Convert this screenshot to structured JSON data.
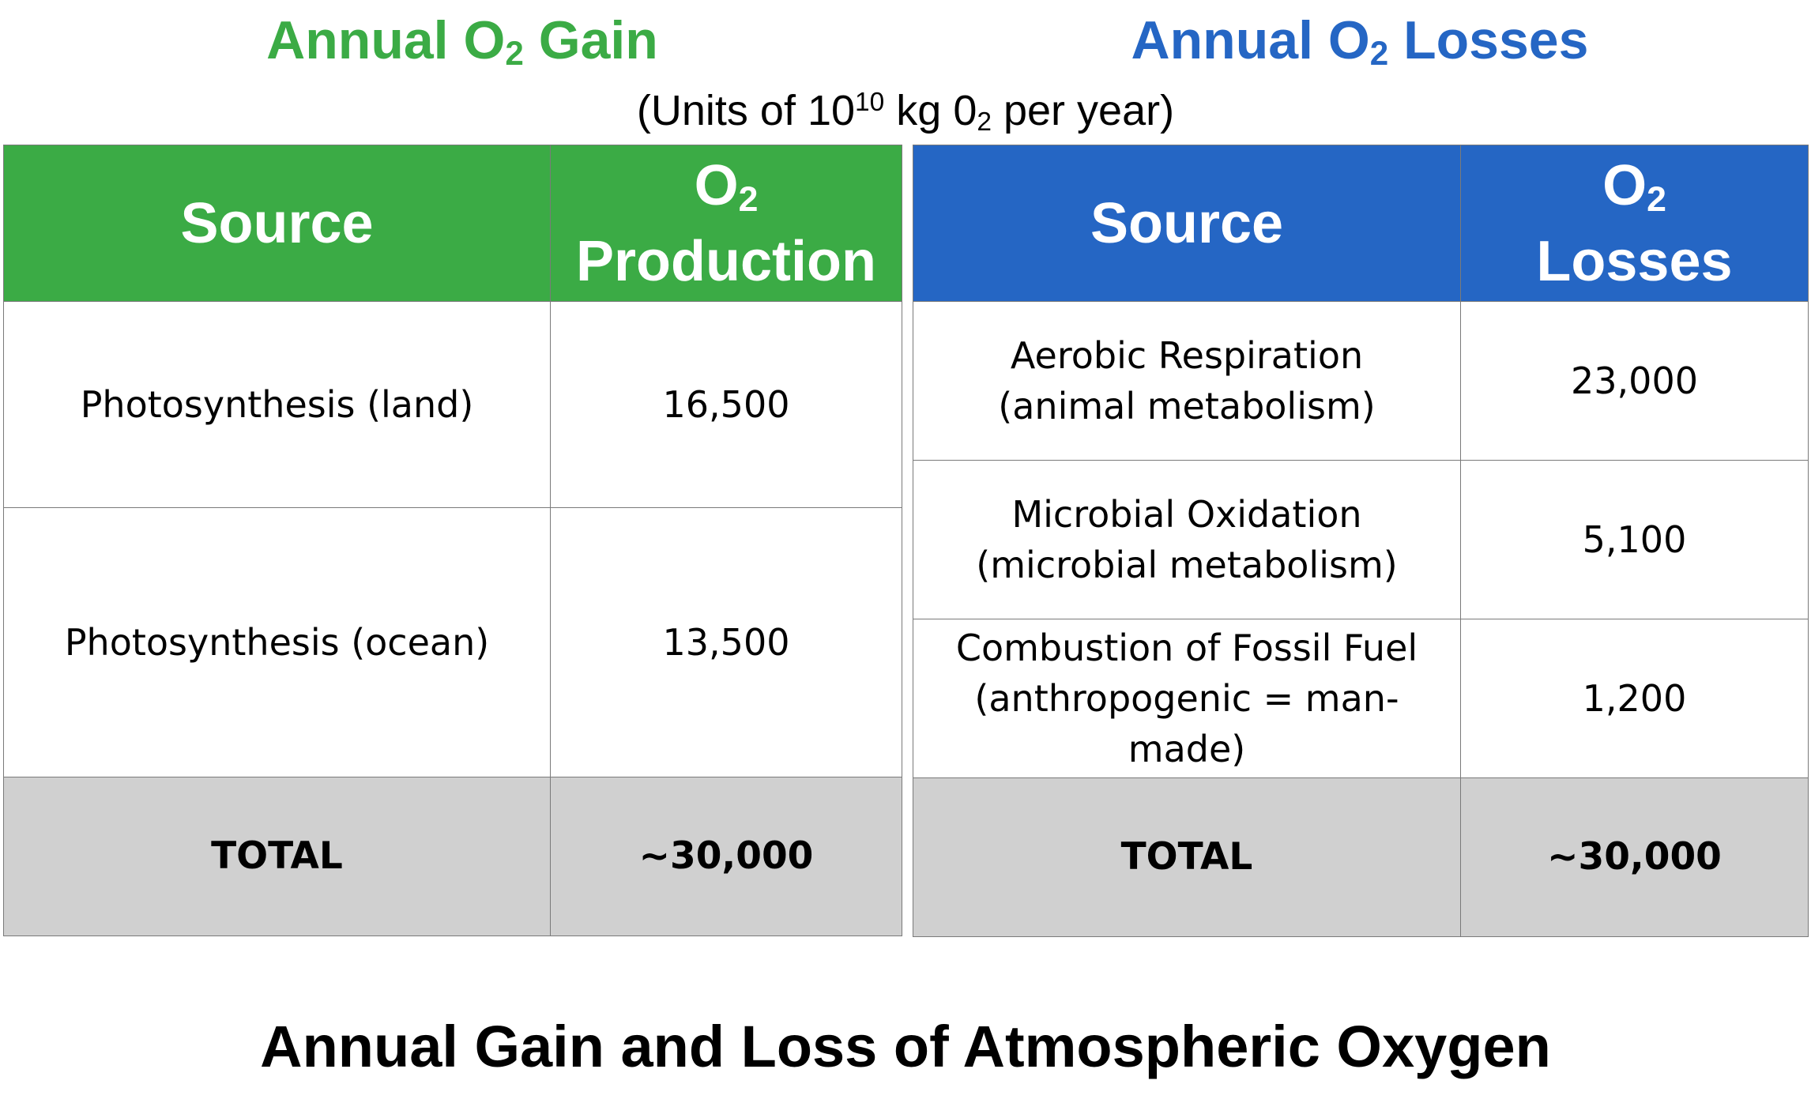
{
  "gain_heading": {
    "pre": "Annual O",
    "sub": "2",
    "post": " Gain"
  },
  "loss_heading": {
    "pre": "Annual O",
    "sub": "2",
    "post": " Losses"
  },
  "units": {
    "pre": "(Units of 10",
    "sup": "10",
    "mid": " kg 0",
    "sub": "2",
    "post": " per year)"
  },
  "gain_table": {
    "header_source": "Source",
    "header_value_line1_pre": "O",
    "header_value_line1_sub": "2",
    "header_value_line2": "Production",
    "rows": [
      {
        "source": "Photosynthesis (land)",
        "value": "16,500"
      },
      {
        "source": "Photosynthesis (ocean)",
        "value": "13,500"
      }
    ],
    "total_label": "TOTAL",
    "total_value": "~30,000"
  },
  "loss_table": {
    "header_source": "Source",
    "header_value_line1_pre": "O",
    "header_value_line1_sub": "2",
    "header_value_line2": "Losses",
    "rows": [
      {
        "source_line1": "Aerobic Respiration",
        "source_line2": "(animal metabolism)",
        "value": "23,000"
      },
      {
        "source_line1": "Microbial Oxidation",
        "source_line2": "(microbial metabolism)",
        "value": "5,100"
      },
      {
        "source_line1": "Combustion of Fossil Fuel",
        "source_line2": "(anthropogenic = man-made)",
        "value": "1,200"
      }
    ],
    "total_label": "TOTAL",
    "total_value": "~30,000"
  },
  "title": "Annual Gain and Loss of Atmospheric Oxygen",
  "colors": {
    "gain_green": "#3bab45",
    "loss_blue": "#2566c4",
    "total_gray": "#d0d0d0"
  }
}
